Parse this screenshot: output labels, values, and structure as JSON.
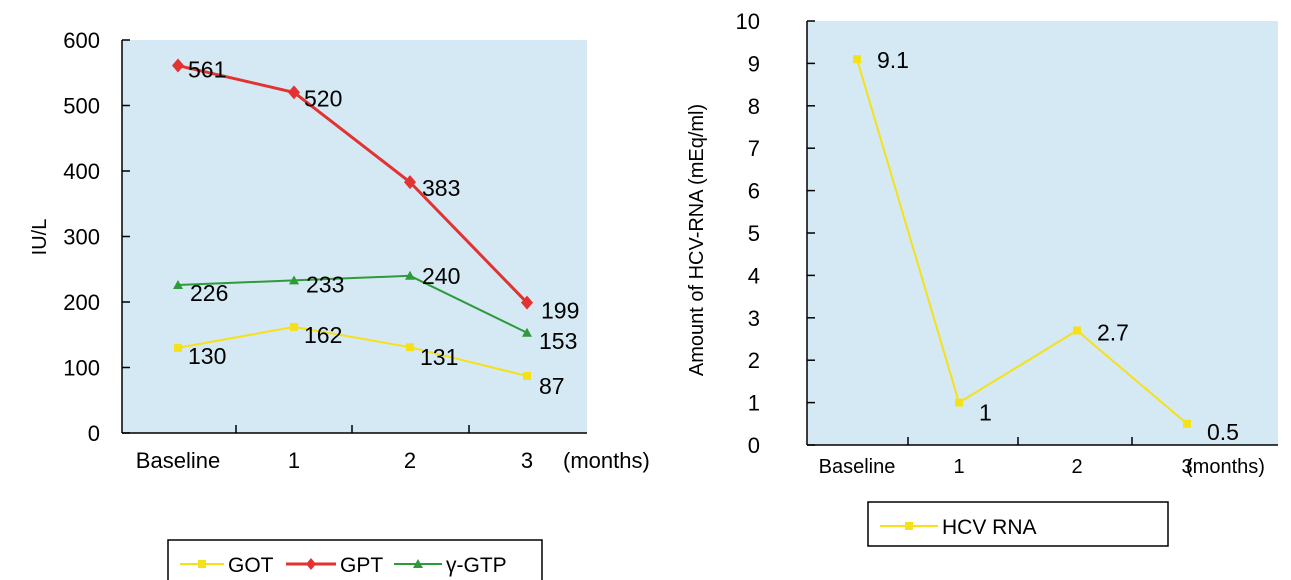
{
  "chart_data": [
    {
      "type": "line",
      "title": "",
      "categories": [
        "Baseline",
        "1",
        "2",
        "3"
      ],
      "xlabel": "(months)",
      "ylabel": "IU/L",
      "ylim": [
        0,
        600
      ],
      "yticks": [
        "0",
        "100",
        "200",
        "300",
        "400",
        "500",
        "600"
      ],
      "grid": false,
      "legend_position": "bottom",
      "background": "#d4e9f3",
      "series": [
        {
          "name": "GOT",
          "color": "#f5e11a",
          "marker": "square",
          "values": [
            130,
            162,
            131,
            87
          ],
          "labels": [
            "130",
            "162",
            "131",
            "87"
          ]
        },
        {
          "name": "GPT",
          "color": "#e23232",
          "marker": "diamond",
          "values": [
            561,
            520,
            383,
            199
          ],
          "labels": [
            "561",
            "520",
            "383",
            "199"
          ]
        },
        {
          "name": "γ-GTP",
          "color": "#2f9a3c",
          "marker": "triangle",
          "values": [
            226,
            233,
            240,
            153
          ],
          "labels": [
            "226",
            "233",
            "240",
            "153"
          ]
        }
      ]
    },
    {
      "type": "line",
      "title": "",
      "categories": [
        "Baseline",
        "1",
        "2",
        "3"
      ],
      "xlabel": "(months)",
      "ylabel": "Amount of HCV-RNA (mEq/ml)",
      "ylim": [
        0,
        10
      ],
      "yticks": [
        "0",
        "1",
        "2",
        "3",
        "4",
        "5",
        "6",
        "7",
        "8",
        "9",
        "10"
      ],
      "grid": false,
      "legend_position": "bottom",
      "background": "#d4e9f3",
      "series": [
        {
          "name": "HCV RNA",
          "color": "#f5e11a",
          "marker": "square",
          "values": [
            9.1,
            1,
            2.7,
            0.5
          ],
          "labels": [
            "9.1",
            "1",
            "2.7",
            "0.5"
          ]
        }
      ]
    }
  ]
}
